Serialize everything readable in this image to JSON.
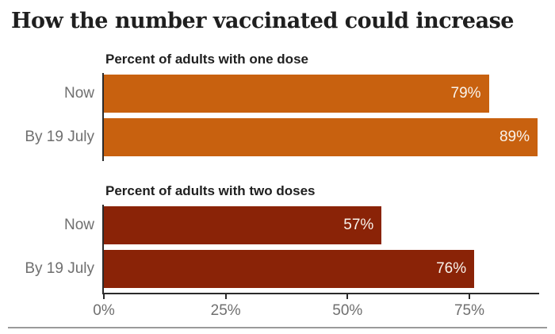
{
  "title": "How the number vaccinated could increase",
  "chart_data": [
    {
      "type": "bar",
      "orientation": "horizontal",
      "title": "Percent of adults with one dose",
      "categories": [
        "Now",
        "By 19 July"
      ],
      "values": [
        79,
        89
      ],
      "value_labels": [
        "79%",
        "89%"
      ],
      "bar_color": "#c8610f",
      "xlim": [
        0,
        89
      ],
      "grid": false,
      "legend": "none"
    },
    {
      "type": "bar",
      "orientation": "horizontal",
      "title": "Percent of adults with two doses",
      "categories": [
        "Now",
        "By 19 July"
      ],
      "values": [
        57,
        76
      ],
      "value_labels": [
        "57%",
        "76%"
      ],
      "bar_color": "#8a2307",
      "xlim": [
        0,
        89
      ],
      "grid": false,
      "legend": "none"
    }
  ],
  "x_axis": {
    "max": 89,
    "tick_values": [
      0,
      25,
      50,
      75
    ],
    "tick_labels": [
      "0%",
      "25%",
      "50%",
      "75%"
    ]
  },
  "colors": {
    "one_dose_bar": "#c8610f",
    "two_doses_bar": "#8a2307",
    "axis": "#2b2b2b",
    "label_gray": "#6f6f6f",
    "heading": "#1f1f1f",
    "value_text": "#f9f3ec",
    "divider": "#9a9a9a",
    "background": "#ffffff"
  }
}
